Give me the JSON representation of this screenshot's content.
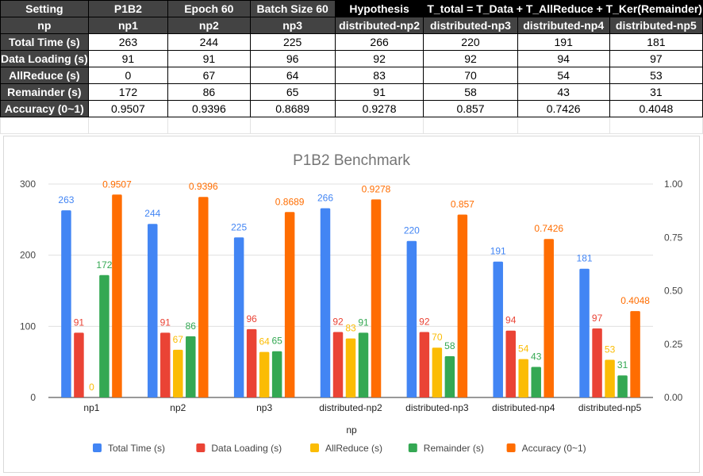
{
  "table": {
    "header_row": [
      "Setting",
      "P1B2",
      "Epoch 60",
      "Batch Size 60",
      "Hypothesis",
      "T_total = T_Data + T_AllReduce + T_Ker(Remainder)"
    ],
    "sub_row": [
      "np",
      "np1",
      "np2",
      "np3",
      "distributed-np2",
      "distributed-np3",
      "distributed-np4",
      "distributed-np5"
    ],
    "rows": [
      {
        "label": "Total Time (s)",
        "values": [
          "263",
          "244",
          "225",
          "266",
          "220",
          "191",
          "181"
        ]
      },
      {
        "label": "Data Loading (s)",
        "values": [
          "91",
          "91",
          "96",
          "92",
          "92",
          "94",
          "97"
        ]
      },
      {
        "label": "AllReduce (s)",
        "values": [
          "0",
          "67",
          "64",
          "83",
          "70",
          "54",
          "53"
        ]
      },
      {
        "label": "Remainder (s)",
        "values": [
          "172",
          "86",
          "65",
          "91",
          "58",
          "43",
          "31"
        ]
      },
      {
        "label": "Accuracy (0~1)",
        "values": [
          "0.9507",
          "0.9396",
          "0.8689",
          "0.9278",
          "0.857",
          "0.7426",
          "0.4048"
        ]
      }
    ]
  },
  "chart_data": {
    "type": "bar",
    "title": "P1B2 Benchmark",
    "xlabel": "np",
    "ylabel": "",
    "categories": [
      "np1",
      "np2",
      "np3",
      "distributed-np2",
      "distributed-np3",
      "distributed-np4",
      "distributed-np5"
    ],
    "ylim": [
      0,
      300
    ],
    "yticks": [
      0,
      100,
      200,
      300
    ],
    "ylim_right": [
      0,
      1
    ],
    "yticks_right": [
      "0.00",
      "0.25",
      "0.50",
      "0.75",
      "1.00"
    ],
    "yticks_right_values": [
      0,
      0.25,
      0.5,
      0.75,
      1.0
    ],
    "legend_position": "bottom",
    "series": [
      {
        "name": "Total Time (s)",
        "axis": "left",
        "color": "#4285F4",
        "values": [
          263,
          244,
          225,
          266,
          220,
          191,
          181
        ],
        "labels": [
          "263",
          "244",
          "225",
          "266",
          "220",
          "191",
          "181"
        ]
      },
      {
        "name": "Data Loading (s)",
        "axis": "left",
        "color": "#EA4335",
        "values": [
          91,
          91,
          96,
          92,
          92,
          94,
          97
        ],
        "labels": [
          "91",
          "91",
          "96",
          "92",
          "92",
          "94",
          "97"
        ]
      },
      {
        "name": "AllReduce (s)",
        "axis": "left",
        "color": "#FBBC04",
        "values": [
          0,
          67,
          64,
          83,
          70,
          54,
          53
        ],
        "labels": [
          "0",
          "67",
          "64",
          "83",
          "70",
          "54",
          "53"
        ]
      },
      {
        "name": "Remainder (s)",
        "axis": "left",
        "color": "#34A853",
        "values": [
          172,
          86,
          65,
          91,
          58,
          43,
          31
        ],
        "labels": [
          "172",
          "86",
          "65",
          "91",
          "58",
          "43",
          "31"
        ]
      },
      {
        "name": "Accuracy (0~1)",
        "axis": "right",
        "color": "#FF6D01",
        "values": [
          0.9507,
          0.9396,
          0.8689,
          0.9278,
          0.857,
          0.7426,
          0.4048
        ],
        "labels": [
          "0.9507",
          "0.9396",
          "0.8689",
          "0.9278",
          "0.857",
          "0.7426",
          "0.4048"
        ]
      }
    ]
  }
}
